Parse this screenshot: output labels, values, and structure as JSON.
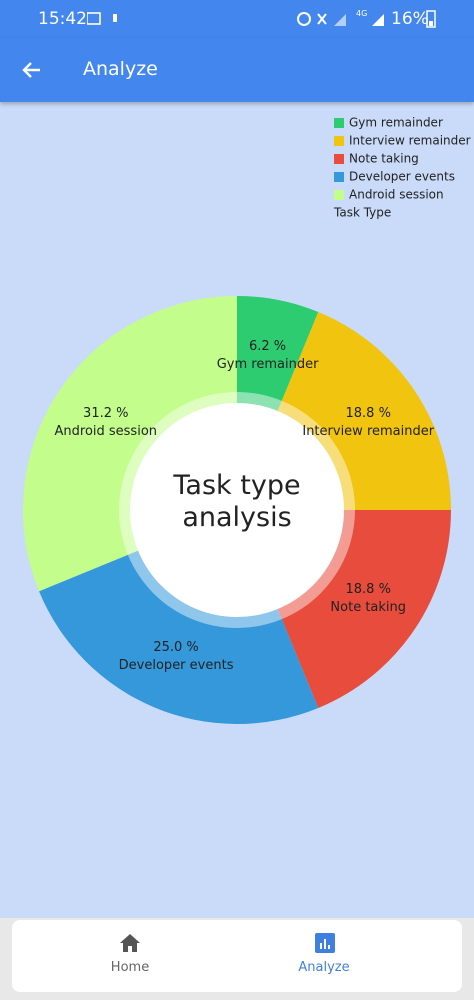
{
  "status_bar": {
    "time": "15:42",
    "network": "4G",
    "battery": "16%"
  },
  "app_bar": {
    "title": "Analyze"
  },
  "chart_data": {
    "type": "pie",
    "categories": [
      "Gym remainder",
      "Interview remainder",
      "Note taking",
      "Developer events",
      "Android session"
    ],
    "values": [
      6.2,
      18.8,
      18.8,
      25.0,
      31.2
    ],
    "value_labels": [
      "6.2 %",
      "18.8 %",
      "18.8 %",
      "25.0 %",
      "31.2 %"
    ],
    "colors": [
      "#2ecc71",
      "#f1c40f",
      "#e74c3c",
      "#3498db",
      "#c3fd8b"
    ],
    "legend_title": "Task Type",
    "legend": "top-right",
    "center_text": "Task type analysis"
  },
  "nav": {
    "items": [
      {
        "label": "Home"
      },
      {
        "label": "Analyze"
      }
    ]
  }
}
